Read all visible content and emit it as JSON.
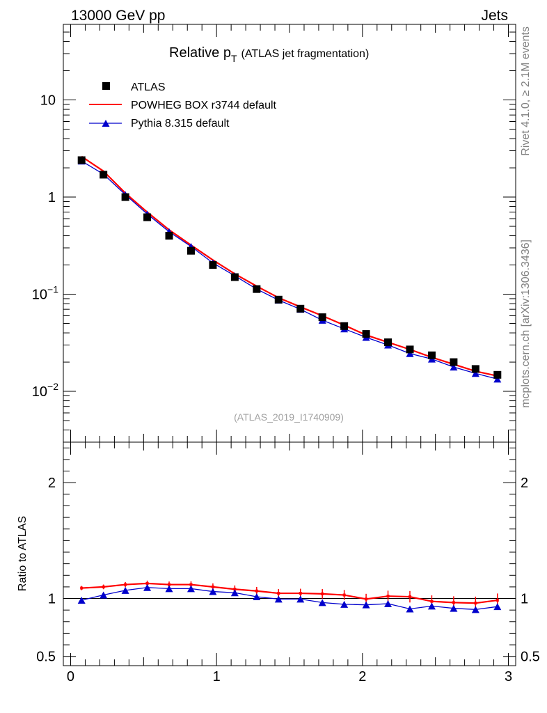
{
  "header": {
    "energy_label": "13000 GeV pp",
    "process_label": "Jets"
  },
  "side_labels": {
    "rivet": "Rivet 4.1.0, ≥ 2.1M events",
    "source": "mcplots.cern.ch [arXiv:1306.3436]"
  },
  "colors": {
    "atlas": "#000000",
    "powheg": "#ff0000",
    "pythia": "#0000cc"
  },
  "chart_data": [
    {
      "type": "scatter",
      "panel": "main",
      "title": "Relative p",
      "title_subscript": "T",
      "title_suffix": "(ATLAS jet fragmentation)",
      "analysis_tag": "(ATLAS_2019_I1740909)",
      "yscale": "log",
      "ylim": [
        0.003,
        60
      ],
      "xlim": [
        -0.05,
        3.05
      ],
      "yticklabels": [
        {
          "value": 10,
          "base": "10",
          "exp": ""
        },
        {
          "value": 1,
          "base": "1",
          "exp": ""
        },
        {
          "value": 0.1,
          "base": "10",
          "exp": "−1"
        },
        {
          "value": 0.01,
          "base": "10",
          "exp": "−2"
        }
      ],
      "x": [
        0.075,
        0.225,
        0.375,
        0.525,
        0.675,
        0.825,
        0.975,
        1.125,
        1.275,
        1.425,
        1.575,
        1.725,
        1.875,
        2.025,
        2.175,
        2.325,
        2.475,
        2.625,
        2.775,
        2.925
      ],
      "series": [
        {
          "name": "ATLAS",
          "style": "markers-square",
          "values": [
            2.4,
            1.7,
            1.0,
            0.62,
            0.4,
            0.28,
            0.2,
            0.15,
            0.113,
            0.088,
            0.071,
            0.058,
            0.047,
            0.039,
            0.032,
            0.027,
            0.0235,
            0.02,
            0.017,
            0.0148
          ]
        },
        {
          "name": "POWHEG BOX r3744 default",
          "style": "line",
          "values": [
            2.62,
            1.85,
            1.1,
            0.7,
            0.46,
            0.32,
            0.225,
            0.162,
            0.121,
            0.092,
            0.074,
            0.06,
            0.048,
            0.038,
            0.032,
            0.027,
            0.0224,
            0.019,
            0.0161,
            0.0144
          ]
        },
        {
          "name": "Pythia 8.315 default",
          "style": "line-triangles",
          "values": [
            2.35,
            1.72,
            1.06,
            0.67,
            0.44,
            0.31,
            0.21,
            0.155,
            0.113,
            0.087,
            0.07,
            0.054,
            0.044,
            0.036,
            0.03,
            0.0245,
            0.0215,
            0.0178,
            0.0153,
            0.0134
          ]
        }
      ]
    },
    {
      "type": "line",
      "panel": "ratio",
      "ylabel": "Ratio to ATLAS",
      "ylim": [
        0.42,
        2.35
      ],
      "xlim": [
        -0.05,
        3.05
      ],
      "yticks": [
        0.5,
        1,
        2
      ],
      "yticklabels": [
        "0.5",
        "1",
        "2"
      ],
      "xticks": [
        0,
        1,
        2,
        3
      ],
      "xticklabels": [
        "0",
        "1",
        "2",
        "3"
      ],
      "x": [
        0.075,
        0.225,
        0.375,
        0.525,
        0.675,
        0.825,
        0.975,
        1.125,
        1.275,
        1.425,
        1.575,
        1.725,
        1.875,
        2.025,
        2.175,
        2.325,
        2.475,
        2.625,
        2.775,
        2.925
      ],
      "series": [
        {
          "name": "POWHEG BOX r3744 default",
          "values": [
            1.09,
            1.1,
            1.12,
            1.13,
            1.12,
            1.12,
            1.1,
            1.08,
            1.065,
            1.045,
            1.045,
            1.04,
            1.03,
            0.995,
            1.02,
            1.015,
            0.975,
            0.965,
            0.96,
            0.985
          ]
        },
        {
          "name": "Pythia 8.315 default",
          "values": [
            0.985,
            1.03,
            1.07,
            1.095,
            1.085,
            1.085,
            1.06,
            1.05,
            1.015,
            0.995,
            0.995,
            0.965,
            0.95,
            0.945,
            0.955,
            0.91,
            0.935,
            0.915,
            0.905,
            0.93
          ]
        }
      ]
    }
  ]
}
